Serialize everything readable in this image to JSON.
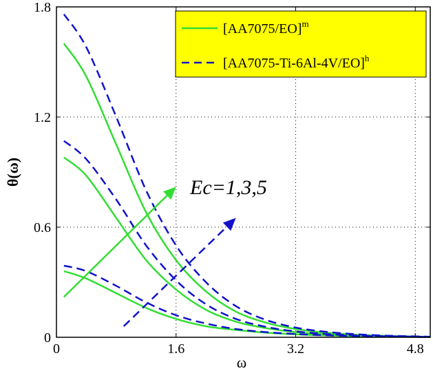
{
  "chart_data": {
    "type": "line",
    "title": "",
    "xlabel": "ω",
    "ylabel": "θ(ω)",
    "xlim": [
      0,
      5.0
    ],
    "ylim": [
      0,
      1.8
    ],
    "xticks": [
      0,
      1.6,
      3.2,
      4.8
    ],
    "xtick_labels": [
      "0",
      "1.6",
      "3.2",
      "4.8"
    ],
    "yticks": [
      0,
      0.6,
      1.2,
      1.8
    ],
    "ytick_labels": [
      "0",
      "0.6",
      "1.2",
      "1.8"
    ],
    "grid": true,
    "legend_position": "top-right",
    "legend": [
      {
        "label": "[AA7075/EO]",
        "sup": "m",
        "style": "solid",
        "color": "#33dd33"
      },
      {
        "label": "[AA7075-Ti-6Al-4V/EO]",
        "sup": "h",
        "style": "dashed",
        "color": "#1111cc"
      }
    ],
    "legend_background": "#ffff00",
    "annotation": "Ec=1,3,5",
    "series": [
      {
        "group": 0,
        "x": [
          0.1,
          0.4,
          0.8,
          1.2,
          1.6,
          2.0,
          2.4,
          2.8,
          3.2,
          3.6,
          4.0,
          4.4,
          4.8,
          5.0
        ],
        "y": [
          0.36,
          0.32,
          0.24,
          0.16,
          0.1,
          0.06,
          0.04,
          0.025,
          0.016,
          0.01,
          0.006,
          0.004,
          0.002,
          0.001
        ]
      },
      {
        "group": 0,
        "x": [
          0.1,
          0.4,
          0.8,
          1.2,
          1.6,
          2.0,
          2.4,
          2.8,
          3.2,
          3.6,
          4.0,
          4.4,
          4.8,
          5.0
        ],
        "y": [
          0.98,
          0.88,
          0.65,
          0.42,
          0.26,
          0.15,
          0.085,
          0.05,
          0.028,
          0.016,
          0.009,
          0.005,
          0.003,
          0.002
        ]
      },
      {
        "group": 0,
        "x": [
          0.1,
          0.4,
          0.8,
          1.2,
          1.6,
          2.0,
          2.4,
          2.8,
          3.2,
          3.6,
          4.0,
          4.4,
          4.8,
          5.0
        ],
        "y": [
          1.6,
          1.42,
          1.05,
          0.68,
          0.42,
          0.25,
          0.14,
          0.08,
          0.045,
          0.025,
          0.014,
          0.008,
          0.004,
          0.003
        ]
      },
      {
        "group": 1,
        "x": [
          0.1,
          0.4,
          0.8,
          1.2,
          1.6,
          2.0,
          2.4,
          2.8,
          3.2,
          3.6,
          4.0,
          4.4,
          4.8,
          5.0
        ],
        "y": [
          0.39,
          0.36,
          0.28,
          0.19,
          0.12,
          0.075,
          0.045,
          0.028,
          0.018,
          0.011,
          0.007,
          0.004,
          0.002,
          0.001
        ]
      },
      {
        "group": 1,
        "x": [
          0.1,
          0.4,
          0.8,
          1.2,
          1.6,
          2.0,
          2.4,
          2.8,
          3.2,
          3.6,
          4.0,
          4.4,
          4.8,
          5.0
        ],
        "y": [
          1.07,
          0.97,
          0.75,
          0.5,
          0.31,
          0.18,
          0.1,
          0.057,
          0.032,
          0.018,
          0.01,
          0.006,
          0.003,
          0.002
        ]
      },
      {
        "group": 1,
        "x": [
          0.1,
          0.4,
          0.8,
          1.2,
          1.6,
          2.0,
          2.4,
          2.8,
          3.2,
          3.6,
          4.0,
          4.4,
          4.8,
          5.0
        ],
        "y": [
          1.76,
          1.58,
          1.2,
          0.8,
          0.5,
          0.3,
          0.17,
          0.095,
          0.053,
          0.03,
          0.017,
          0.009,
          0.005,
          0.003
        ]
      }
    ],
    "arrows": [
      {
        "group": 0,
        "from": [
          0.1,
          0.22
        ],
        "to": [
          1.6,
          0.82
        ]
      },
      {
        "group": 1,
        "from": [
          0.9,
          0.06
        ],
        "to": [
          2.4,
          0.65
        ]
      }
    ]
  }
}
